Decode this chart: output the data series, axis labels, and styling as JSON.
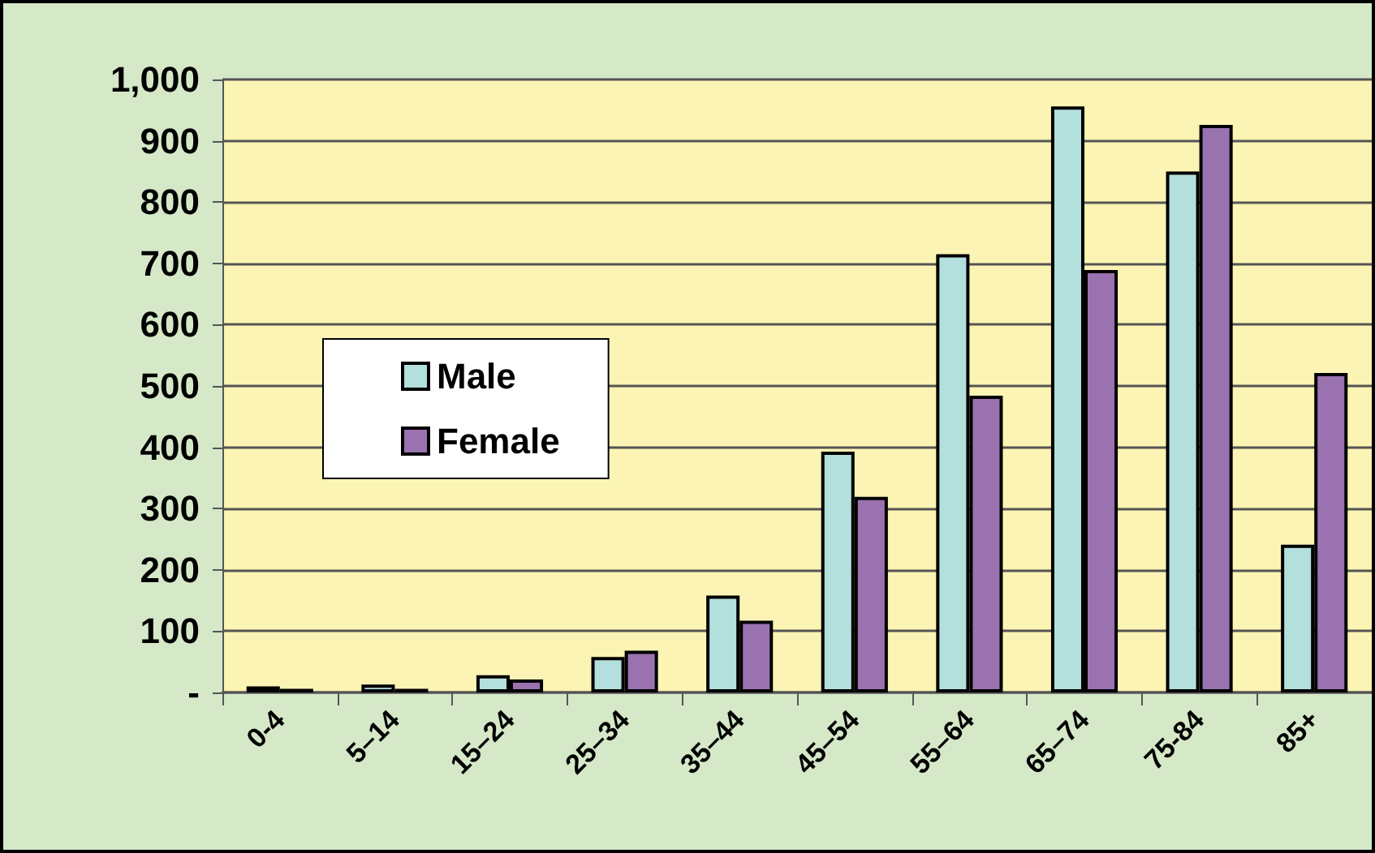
{
  "chart_data": {
    "type": "bar",
    "categories": [
      "0-4",
      "5–14",
      "15–24",
      "25–34",
      "35–44",
      "45–54",
      "55–64",
      "65–74",
      "75-84",
      "85+"
    ],
    "series": [
      {
        "name": "Male",
        "color": "#b3dfdc",
        "values": [
          10,
          13,
          28,
          58,
          158,
          393,
          715,
          956,
          850,
          241
        ]
      },
      {
        "name": "Female",
        "color": "#9b72b0",
        "values": [
          6,
          6,
          21,
          68,
          117,
          319,
          484,
          689,
          926,
          521
        ]
      }
    ],
    "ylim": [
      0,
      1000
    ],
    "yticks": [
      {
        "value": 0,
        "label": "-"
      },
      100,
      200,
      300,
      400,
      500,
      600,
      700,
      800,
      900,
      {
        "value": 1000,
        "label": "1,000"
      }
    ],
    "grid": "y",
    "legend": "left"
  }
}
